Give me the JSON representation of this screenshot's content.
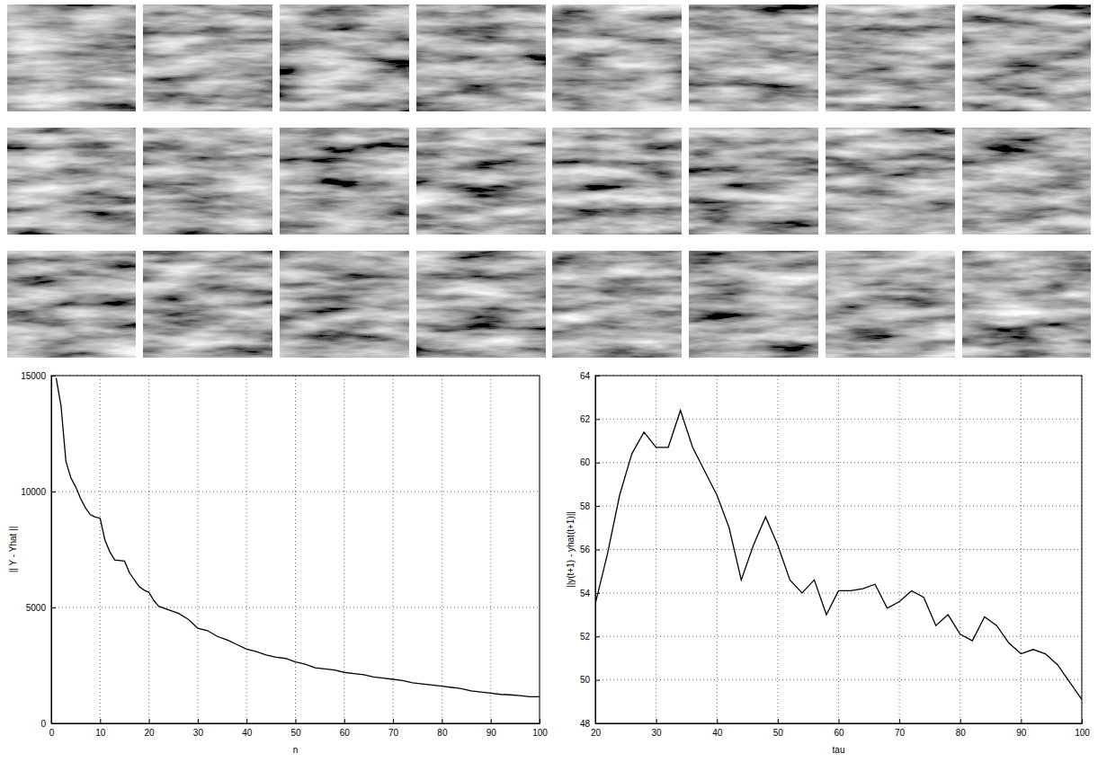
{
  "chart_data": [
    {
      "type": "line",
      "xlabel": "n",
      "ylabel": "|| Y - Yhat ||",
      "color": "#000000",
      "grid": true,
      "xlim": [
        0,
        100
      ],
      "xticks": [
        0,
        10,
        20,
        30,
        40,
        50,
        60,
        70,
        80,
        90,
        100
      ],
      "ylim": [
        0,
        15000
      ],
      "yticks": [
        0,
        5000,
        10000,
        15000
      ],
      "x": [
        1,
        2,
        3,
        4,
        5,
        6,
        7,
        8,
        9,
        10,
        11,
        12,
        13,
        15,
        16,
        17,
        18,
        19,
        20,
        21,
        22,
        24,
        26,
        28,
        29,
        30,
        32,
        34,
        36,
        38,
        40,
        42,
        44,
        46,
        48,
        50,
        52,
        54,
        56,
        58,
        60,
        62,
        64,
        66,
        68,
        70,
        72,
        74,
        76,
        78,
        80,
        82,
        84,
        86,
        88,
        90,
        92,
        94,
        96,
        98,
        100
      ],
      "values": [
        14900,
        13700,
        11300,
        10600,
        10200,
        9700,
        9300,
        9000,
        8900,
        8850,
        7900,
        7400,
        7050,
        7000,
        6500,
        6200,
        5900,
        5750,
        5650,
        5300,
        5050,
        4900,
        4750,
        4500,
        4300,
        4100,
        4000,
        3750,
        3600,
        3400,
        3200,
        3100,
        2950,
        2850,
        2800,
        2650,
        2550,
        2400,
        2350,
        2300,
        2200,
        2150,
        2100,
        2000,
        1950,
        1900,
        1850,
        1750,
        1700,
        1650,
        1600,
        1550,
        1500,
        1400,
        1350,
        1300,
        1250,
        1230,
        1200,
        1150,
        1150
      ]
    },
    {
      "type": "line",
      "xlabel": "tau",
      "ylabel": "||y(t+1) - yhat(t+1)||",
      "color": "#000000",
      "grid": true,
      "xlim": [
        20,
        100
      ],
      "xticks": [
        20,
        30,
        40,
        50,
        60,
        70,
        80,
        90,
        100
      ],
      "ylim": [
        48,
        64
      ],
      "yticks": [
        48,
        50,
        52,
        54,
        56,
        58,
        60,
        62,
        64
      ],
      "x": [
        20,
        22,
        24,
        26,
        28,
        30,
        32,
        34,
        36,
        38,
        40,
        42,
        44,
        46,
        48,
        50,
        52,
        54,
        56,
        58,
        60,
        62,
        64,
        66,
        68,
        70,
        72,
        74,
        76,
        78,
        80,
        82,
        84,
        86,
        88,
        90,
        92,
        94,
        96,
        98,
        100
      ],
      "values": [
        53.5,
        55.8,
        58.5,
        60.4,
        61.4,
        60.7,
        60.7,
        62.4,
        60.7,
        59.6,
        58.5,
        57.0,
        54.6,
        56.2,
        57.5,
        56.2,
        54.6,
        54.0,
        54.6,
        53.0,
        54.1,
        54.1,
        54.2,
        54.4,
        53.3,
        53.6,
        54.1,
        53.8,
        52.5,
        53.0,
        52.1,
        51.8,
        52.9,
        52.5,
        51.7,
        51.2,
        51.4,
        51.2,
        50.7,
        49.9,
        49.1
      ]
    }
  ]
}
